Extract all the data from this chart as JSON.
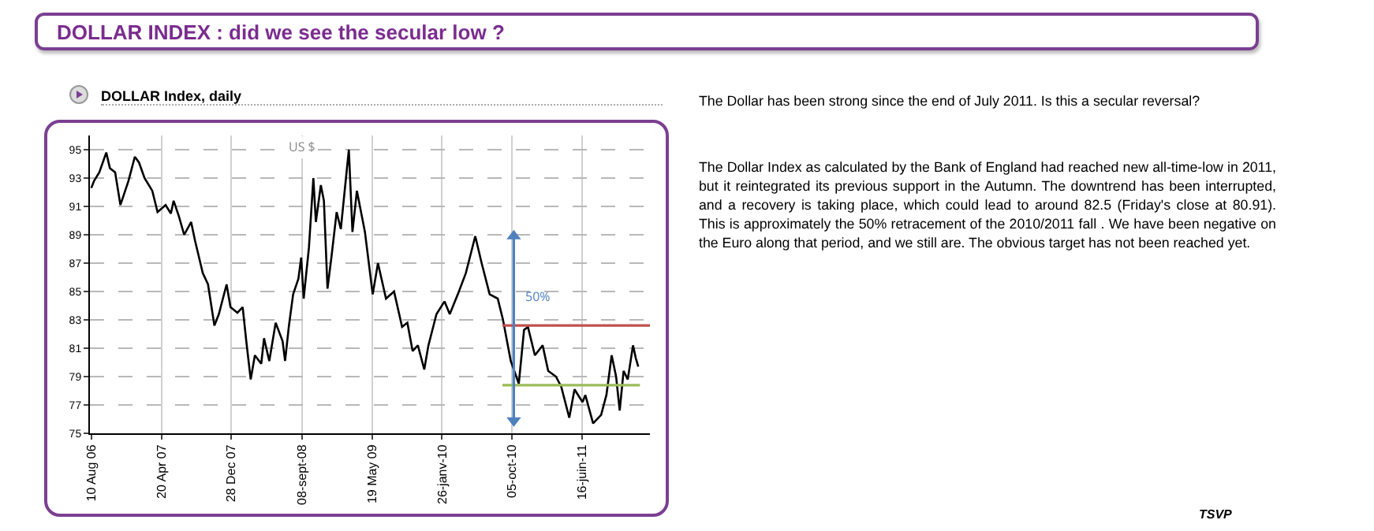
{
  "chart_data": {
    "type": "line",
    "title": "DOLLAR INDEX : did we see the secular low ?",
    "subtitle": "DOLLAR Index, daily",
    "annotations": [
      "US $",
      "The Dollar has been strong since the end of July 2011. Is this a secular reversal?",
      "The Dollar Index as calculated by the Bank of England had reached new all-time-low in 2011, but it reintegrated its previous support in the Autumn. The downtrend has been interrupted, and a recovery is taking place, which could lead to around 82.5 (Friday's close at 80.91). This is approximately the 50% retracement of the 2010/2011 fall . We have been negative on the Euro along that period, and we still are. The obvious target has not been reached yet.",
      "TSVP",
      "50%"
    ],
    "series": [
      {
        "color": "#000000",
        "x": [
          "2006-08-10",
          "2006-08-20",
          "2006-09-08",
          "2006-10-03",
          "2006-10-16",
          "2006-11-04",
          "2006-11-23",
          "2006-12-22",
          "2007-01-14",
          "2007-01-29",
          "2007-02-18",
          "2007-03-18",
          "2007-04-06",
          "2007-05-05",
          "2007-05-24",
          "2007-06-03",
          "2007-06-22",
          "2007-07-11",
          "2007-08-05",
          "2007-08-19",
          "2007-09-16",
          "2007-10-05",
          "2007-10-28",
          "2007-11-13",
          "2007-12-11",
          "2007-12-25",
          "2008-01-19",
          "2008-02-07",
          "2008-02-20",
          "2008-03-07",
          "2008-03-22",
          "2008-04-14",
          "2008-04-24",
          "2008-05-13",
          "2008-06-05",
          "2008-06-30",
          "2008-07-09",
          "2008-07-23",
          "2008-08-07",
          "2008-08-26",
          "2008-09-05",
          "2008-09-14",
          "2008-10-03",
          "2008-10-19",
          "2008-10-28",
          "2008-11-15",
          "2008-11-26",
          "2008-12-09",
          "2008-12-23",
          "2009-01-11",
          "2009-01-26",
          "2009-02-11",
          "2009-02-24",
          "2009-03-09",
          "2009-03-25",
          "2009-04-23",
          "2009-05-21",
          "2009-06-09",
          "2009-07-08",
          "2009-08-06",
          "2009-09-04",
          "2009-09-23",
          "2009-10-12",
          "2009-10-31",
          "2009-11-23",
          "2009-12-08",
          "2010-01-06",
          "2010-02-04",
          "2010-02-23",
          "2010-03-24",
          "2010-04-22",
          "2010-05-26",
          "2010-06-18",
          "2010-07-17",
          "2010-08-15",
          "2010-09-03",
          "2010-10-01",
          "2010-10-30",
          "2010-11-18",
          "2010-12-02",
          "2010-12-27",
          "2011-01-24",
          "2011-02-13",
          "2011-03-13",
          "2011-04-01",
          "2011-04-30",
          "2011-05-19",
          "2011-06-17",
          "2011-06-27",
          "2011-07-25",
          "2011-08-23",
          "2011-09-11",
          "2011-09-30",
          "2011-10-16",
          "2011-10-29",
          "2011-11-12",
          "2011-11-27",
          "2011-12-16",
          "2011-12-26",
          "2012-01-04"
        ],
        "values": [
          92.3,
          92.8,
          93.4,
          94.8,
          93.7,
          93.4,
          91.1,
          92.8,
          94.5,
          94.1,
          93.0,
          92.1,
          90.6,
          91.1,
          90.5,
          91.4,
          90.3,
          89.0,
          89.9,
          88.6,
          86.3,
          85.5,
          82.6,
          83.4,
          85.5,
          83.9,
          83.5,
          83.9,
          81.5,
          78.8,
          80.5,
          79.9,
          81.7,
          80.1,
          82.8,
          81.5,
          80.1,
          82.6,
          84.8,
          85.9,
          87.4,
          84.5,
          88.1,
          93.0,
          89.9,
          92.5,
          91.4,
          85.2,
          87.4,
          90.6,
          89.4,
          92.5,
          95.0,
          89.2,
          92.1,
          89.2,
          84.8,
          87.0,
          84.5,
          85.0,
          82.5,
          82.8,
          80.8,
          81.2,
          79.5,
          81.2,
          83.4,
          84.3,
          83.4,
          84.8,
          86.3,
          88.9,
          87.0,
          84.8,
          84.5,
          83.0,
          80.1,
          78.5,
          82.3,
          82.5,
          80.5,
          81.2,
          79.4,
          79.0,
          78.3,
          76.1,
          78.1,
          77.2,
          77.7,
          75.7,
          76.3,
          77.7,
          80.5,
          79.0,
          76.6,
          79.4,
          78.8,
          81.2,
          80.3,
          79.7
        ]
      },
      {
        "color": "#c0504d",
        "x": [
          "2010-09-01",
          "2012-02-15"
        ],
        "values": [
          82.6,
          82.6
        ]
      },
      {
        "color": "#9bbb59",
        "x": [
          "2010-09-01",
          "2012-01-10"
        ],
        "values": [
          78.4,
          78.4
        ]
      },
      {
        "color": "#4f81bd",
        "marker": "triangle",
        "x": [
          "2010-10-12",
          "2010-10-12"
        ],
        "values": [
          88.9,
          75.9
        ]
      }
    ],
    "xlim": [
      "2006-08-05",
      "2012-02-15"
    ],
    "xticks": [
      {
        "value": "2006-08-10",
        "label": "10 Aug 06"
      },
      {
        "value": "2007-04-20",
        "label": "20 Apr 07"
      },
      {
        "value": "2007-12-28",
        "label": "28 Dec 07"
      },
      {
        "value": "2008-09-08",
        "label": "08-sept-08"
      },
      {
        "value": "2009-05-19",
        "label": "19 May 09"
      },
      {
        "value": "2010-01-26",
        "label": "26-janv-10"
      },
      {
        "value": "2010-10-05",
        "label": "05-oct-10"
      },
      {
        "value": "2011-06-16",
        "label": "16-juin-11"
      }
    ],
    "ylim": [
      75,
      96
    ],
    "yticks": [
      75,
      77,
      79,
      81,
      83,
      85,
      87,
      89,
      91,
      93,
      95
    ],
    "grid": true
  }
}
